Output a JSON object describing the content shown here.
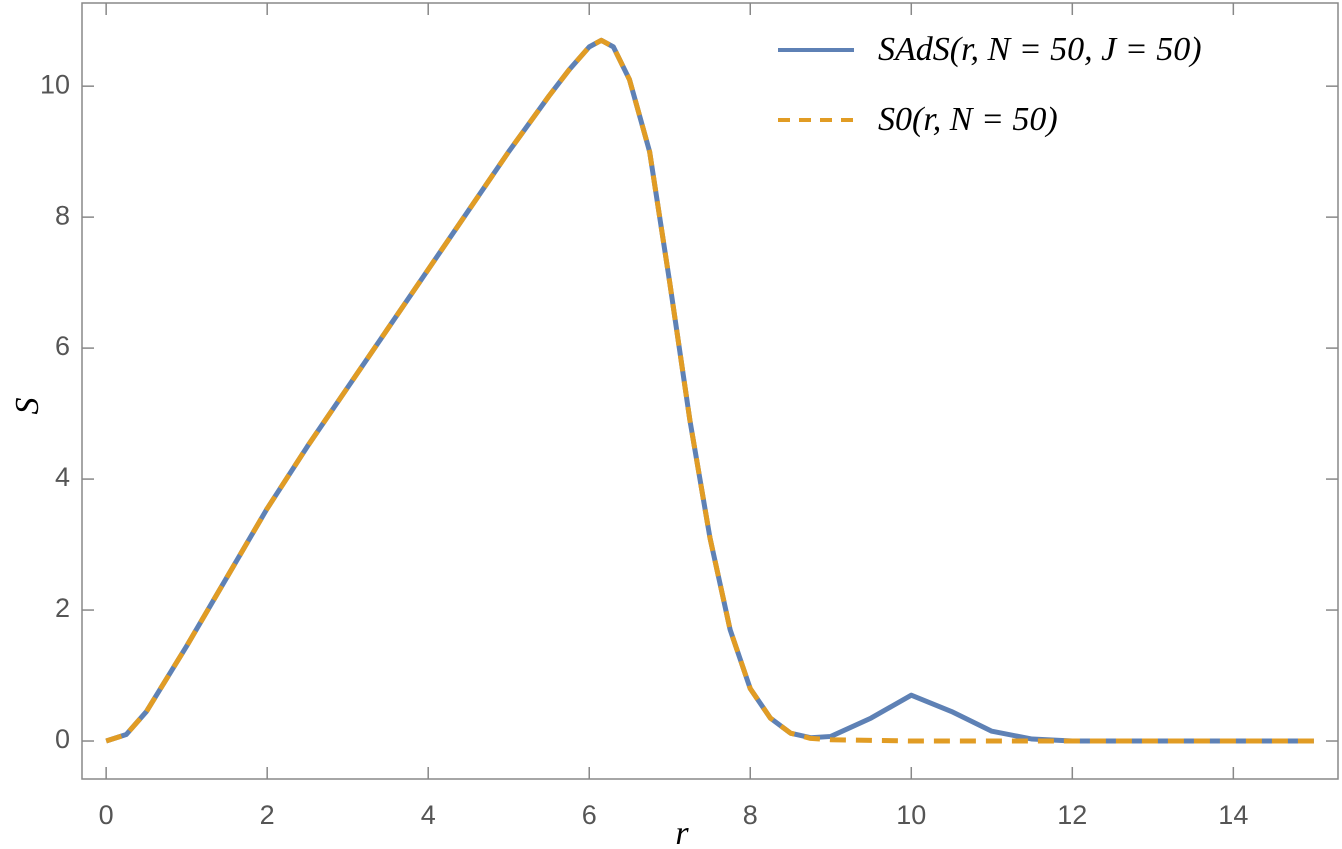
{
  "chart_data": {
    "type": "line",
    "x_label": "r",
    "y_label": "S",
    "x": [
      0,
      0.25,
      0.5,
      0.75,
      1,
      1.5,
      2,
      2.5,
      3,
      3.5,
      4,
      4.5,
      5,
      5.5,
      5.75,
      6,
      6.15,
      6.3,
      6.5,
      6.75,
      7,
      7.25,
      7.5,
      7.75,
      8,
      8.25,
      8.5,
      8.75,
      9,
      9.5,
      10,
      10.5,
      11,
      11.5,
      12,
      13,
      14,
      15
    ],
    "series": [
      {
        "name": "SAdS(r, N = 50, J = 50)",
        "color": "#5e81b5",
        "dashed": false,
        "values": [
          0,
          0.1,
          0.45,
          0.95,
          1.45,
          2.5,
          3.55,
          4.5,
          5.4,
          6.3,
          7.2,
          8.1,
          9.0,
          9.85,
          10.25,
          10.6,
          10.7,
          10.6,
          10.1,
          9.0,
          7.0,
          4.9,
          3.1,
          1.7,
          0.8,
          0.35,
          0.12,
          0.05,
          0.07,
          0.35,
          0.7,
          0.45,
          0.15,
          0.03,
          0,
          0,
          0,
          0
        ]
      },
      {
        "name": "S0(r, N = 50)",
        "color": "#e19c24",
        "dashed": true,
        "values": [
          0,
          0.1,
          0.45,
          0.95,
          1.45,
          2.5,
          3.55,
          4.5,
          5.4,
          6.3,
          7.2,
          8.1,
          9.0,
          9.85,
          10.25,
          10.6,
          10.7,
          10.6,
          10.1,
          9.0,
          7.0,
          4.9,
          3.1,
          1.7,
          0.8,
          0.35,
          0.12,
          0.04,
          0.02,
          0.01,
          0,
          0,
          0,
          0,
          0,
          0,
          0,
          0
        ]
      }
    ],
    "xlim": [
      -0.3,
      15.3
    ],
    "ylim": [
      -0.58,
      11.27
    ],
    "xticks": [
      0,
      2,
      4,
      6,
      8,
      10,
      12,
      14
    ],
    "yticks": [
      0,
      2,
      4,
      6,
      8,
      10
    ],
    "legend": "upper right"
  }
}
